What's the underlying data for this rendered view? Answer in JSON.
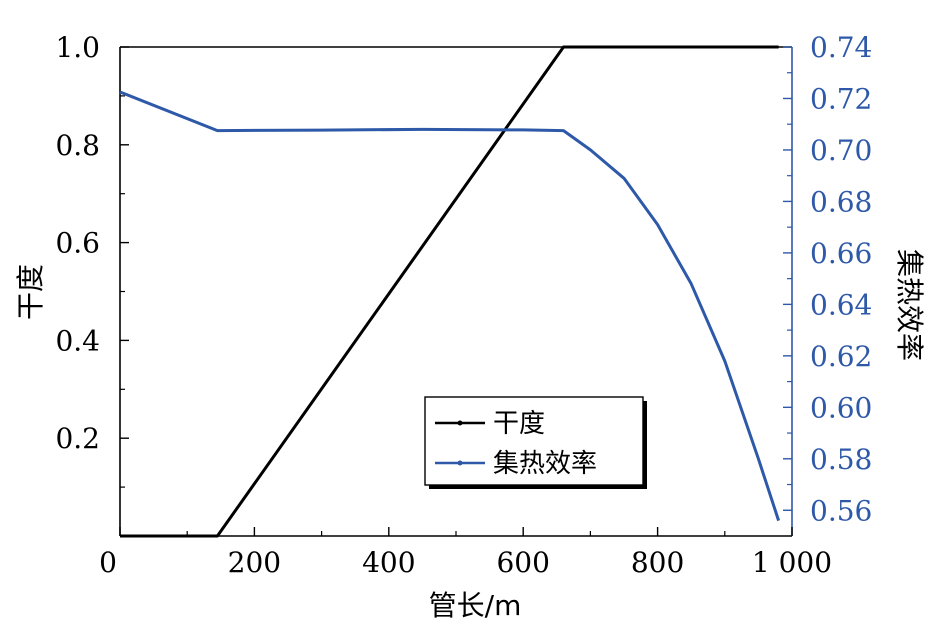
{
  "chart_data": {
    "type": "line",
    "xlabel": "管长/m",
    "ylabel_left": "干度",
    "ylabel_right": "集热效率",
    "xlim": [
      0,
      1000
    ],
    "ylim_left": [
      0,
      1.0
    ],
    "ylim_right": [
      0.55,
      0.74
    ],
    "x_ticks": [
      {
        "value": 0,
        "label": "0"
      },
      {
        "value": 200,
        "label": "200"
      },
      {
        "value": 400,
        "label": "400"
      },
      {
        "value": 600,
        "label": "600"
      },
      {
        "value": 800,
        "label": "800"
      },
      {
        "value": 1000,
        "label": "1 000"
      }
    ],
    "y_left_ticks": [
      {
        "value": 0.2,
        "label": "0.2"
      },
      {
        "value": 0.4,
        "label": "0.4"
      },
      {
        "value": 0.6,
        "label": "0.6"
      },
      {
        "value": 0.8,
        "label": "0.8"
      },
      {
        "value": 1.0,
        "label": "1.0"
      }
    ],
    "y_right_ticks": [
      {
        "value": 0.56,
        "label": "0.56"
      },
      {
        "value": 0.58,
        "label": "0.58"
      },
      {
        "value": 0.6,
        "label": "0.60"
      },
      {
        "value": 0.62,
        "label": "0.62"
      },
      {
        "value": 0.64,
        "label": "0.64"
      },
      {
        "value": 0.66,
        "label": "0.66"
      },
      {
        "value": 0.68,
        "label": "0.68"
      },
      {
        "value": 0.7,
        "label": "0.70"
      },
      {
        "value": 0.72,
        "label": "0.72"
      },
      {
        "value": 0.74,
        "label": "0.74"
      }
    ],
    "series": [
      {
        "name": "干度",
        "axis": "left",
        "color": "#000000",
        "x": [
          0,
          145,
          660,
          980
        ],
        "y": [
          0.0,
          0.0,
          1.0,
          1.0
        ]
      },
      {
        "name": "集热效率",
        "axis": "right",
        "color": "#2e59a8",
        "x": [
          0,
          145,
          300,
          450,
          600,
          660,
          700,
          750,
          800,
          850,
          900,
          950,
          980
        ],
        "y": [
          0.7225,
          0.7075,
          0.7077,
          0.708,
          0.7078,
          0.7075,
          0.7,
          0.689,
          0.671,
          0.648,
          0.618,
          0.58,
          0.556
        ]
      }
    ],
    "legend": {
      "placement": "center-bottom",
      "entries": [
        "干度",
        "集热效率"
      ]
    },
    "grid": false,
    "right_axis_color": "#2e59a8"
  }
}
